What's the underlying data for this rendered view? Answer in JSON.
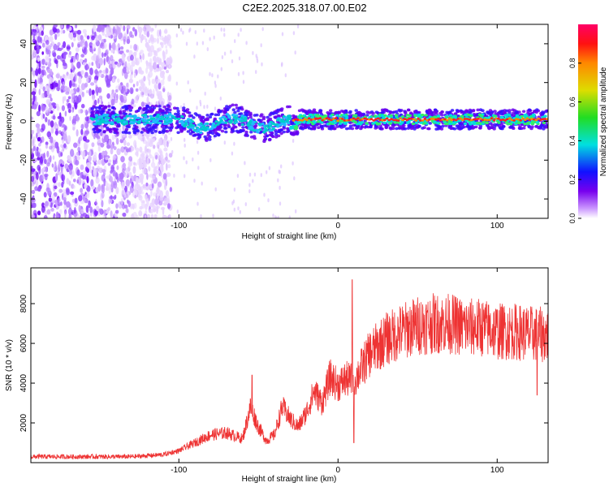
{
  "title": "C2E2.2025.318.07.00.E02",
  "colors": {
    "line": "#ee3333",
    "axis": "#000000",
    "background": "#ffffff"
  },
  "chart_data": [
    {
      "type": "heatmap",
      "title": "C2E2.2025.318.07.00.E02",
      "xlabel": "Height of straight line (km)",
      "ylabel": "Frequency (Hz)",
      "xlim": [
        -193,
        132
      ],
      "ylim": [
        -50,
        50
      ],
      "xticks": [
        -100,
        0,
        100
      ],
      "yticks": [
        -40,
        -20,
        0,
        20,
        40
      ],
      "colorbar": {
        "label": "Normalized spectral amplitude",
        "range": [
          0,
          1
        ],
        "ticks": [
          0.0,
          0.2,
          0.4,
          0.6,
          0.8
        ],
        "colormap": "rainbow (violet low → red high)"
      },
      "features": {
        "noise_region_x": [
          -193,
          -105
        ],
        "center_line_frequency_hz": 1,
        "center_line_x": [
          -155,
          132
        ]
      }
    },
    {
      "type": "line",
      "xlabel": "Height of straight line (km)",
      "ylabel": "SNR (10 * v/v)",
      "xlim": [
        -193,
        132
      ],
      "ylim": [
        0,
        9800
      ],
      "xticks": [
        -100,
        0,
        100
      ],
      "yticks": [
        2000,
        4000,
        6000,
        8000
      ],
      "series": [
        {
          "name": "SNR",
          "x": [
            -193,
            -160,
            -130,
            -110,
            -100,
            -90,
            -80,
            -70,
            -60,
            -55,
            -50,
            -45,
            -40,
            -35,
            -30,
            -25,
            -20,
            -15,
            -10,
            -5,
            0,
            5,
            10,
            15,
            20,
            30,
            40,
            50,
            60,
            70,
            80,
            90,
            100,
            110,
            120,
            132
          ],
          "values": [
            300,
            300,
            300,
            400,
            600,
            1000,
            1400,
            1500,
            1200,
            2800,
            1800,
            1100,
            1400,
            2800,
            2200,
            1800,
            2500,
            3600,
            3000,
            4300,
            3900,
            4200,
            4100,
            4800,
            5500,
            6200,
            6600,
            6900,
            7000,
            7000,
            6800,
            6800,
            6600,
            6600,
            6500,
            6400
          ]
        }
      ],
      "spikes": [
        {
          "x": 9,
          "y": 9200
        },
        {
          "x": 10,
          "y": 1000
        },
        {
          "x": -54,
          "y": 4400
        },
        {
          "x": 125,
          "y": 3400
        }
      ]
    }
  ]
}
